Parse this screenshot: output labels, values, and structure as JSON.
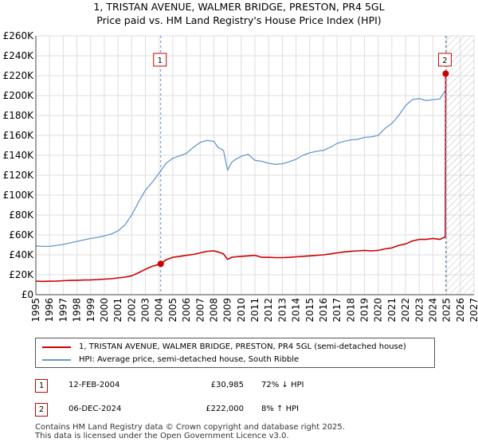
{
  "title_line1": "1, TRISTAN AVENUE, WALMER BRIDGE, PRESTON, PR4 5GL",
  "title_line2": "Price paid vs. HM Land Registry's House Price Index (HPI)",
  "chart_data": {
    "type": "line",
    "title": "1, TRISTAN AVENUE, WALMER BRIDGE, PRESTON, PR4 5GL",
    "subtitle": "Price paid vs. HM Land Registry's House Price Index (HPI)",
    "xlabel": "",
    "ylabel": "",
    "xlim": [
      1995,
      2027
    ],
    "ylim": [
      0,
      260000
    ],
    "x_ticks": [
      1995,
      1996,
      1997,
      1998,
      1999,
      2000,
      2001,
      2002,
      2003,
      2004,
      2005,
      2006,
      2007,
      2008,
      2009,
      2010,
      2011,
      2012,
      2013,
      2014,
      2015,
      2016,
      2017,
      2018,
      2019,
      2020,
      2021,
      2022,
      2023,
      2024,
      2025,
      2026,
      2027
    ],
    "y_ticks": [
      0,
      20000,
      40000,
      60000,
      80000,
      100000,
      120000,
      140000,
      160000,
      180000,
      200000,
      220000,
      240000,
      260000
    ],
    "y_tick_labels": [
      "£0",
      "£20K",
      "£40K",
      "£60K",
      "£80K",
      "£100K",
      "£120K",
      "£140K",
      "£160K",
      "£180K",
      "£200K",
      "£220K",
      "£240K",
      "£260K"
    ],
    "grid": true,
    "future_hatch_from": 2025.0,
    "series": [
      {
        "name": "1, TRISTAN AVENUE, WALMER BRIDGE, PRESTON, PR4 5GL (semi-detached house)",
        "color": "#cc0000",
        "x": [
          1995.0,
          1995.5,
          1996.0,
          1996.5,
          1997.0,
          1997.5,
          1998.0,
          1998.5,
          1999.0,
          1999.5,
          2000.0,
          2000.5,
          2001.0,
          2001.5,
          2002.0,
          2002.5,
          2003.0,
          2003.5,
          2004.12,
          2004.5,
          2005.0,
          2005.5,
          2006.0,
          2006.5,
          2007.0,
          2007.5,
          2008.0,
          2008.3,
          2008.7,
          2009.0,
          2009.3,
          2009.6,
          2010.0,
          2010.5,
          2011.0,
          2011.5,
          2012.0,
          2012.5,
          2013.0,
          2013.5,
          2014.0,
          2014.5,
          2015.0,
          2015.5,
          2016.0,
          2016.5,
          2017.0,
          2017.5,
          2018.0,
          2018.5,
          2019.0,
          2019.5,
          2020.0,
          2020.5,
          2021.0,
          2021.5,
          2022.0,
          2022.5,
          2023.0,
          2023.5,
          2024.0,
          2024.5,
          2024.9,
          2024.93,
          2025.0
        ],
        "values": [
          13600,
          13400,
          13500,
          13700,
          14000,
          14300,
          14500,
          14700,
          14900,
          15200,
          15600,
          16000,
          16800,
          17600,
          19000,
          22000,
          25500,
          28500,
          30985,
          35000,
          37500,
          38500,
          39500,
          40500,
          42000,
          43500,
          44000,
          43000,
          41000,
          35500,
          37500,
          38000,
          38500,
          39000,
          39500,
          37500,
          37500,
          37200,
          37200,
          37500,
          38000,
          38500,
          39000,
          39500,
          40000,
          41000,
          42000,
          43000,
          43500,
          44000,
          44500,
          44000,
          44500,
          46000,
          47000,
          49500,
          51000,
          54000,
          55500,
          55500,
          56500,
          55500,
          58000,
          222000,
          222500
        ]
      },
      {
        "name": "HPI: Average price, semi-detached house, South Ribble",
        "color": "#6699cc",
        "x": [
          1995.0,
          1995.5,
          1996.0,
          1996.5,
          1997.0,
          1997.5,
          1998.0,
          1998.5,
          1999.0,
          1999.5,
          2000.0,
          2000.5,
          2001.0,
          2001.5,
          2002.0,
          2002.5,
          2003.0,
          2003.5,
          2004.0,
          2004.5,
          2005.0,
          2005.5,
          2006.0,
          2006.5,
          2007.0,
          2007.5,
          2008.0,
          2008.3,
          2008.7,
          2009.0,
          2009.3,
          2009.6,
          2010.0,
          2010.5,
          2011.0,
          2011.5,
          2012.0,
          2012.5,
          2013.0,
          2013.5,
          2014.0,
          2014.5,
          2015.0,
          2015.5,
          2016.0,
          2016.5,
          2017.0,
          2017.5,
          2018.0,
          2018.5,
          2019.0,
          2019.5,
          2020.0,
          2020.5,
          2021.0,
          2021.5,
          2022.0,
          2022.5,
          2023.0,
          2023.5,
          2024.0,
          2024.5,
          2024.9
        ],
        "values": [
          49000,
          48500,
          48500,
          49500,
          50500,
          52000,
          53500,
          55000,
          56500,
          57500,
          59000,
          61000,
          64000,
          70000,
          80000,
          93000,
          105000,
          113000,
          122000,
          132000,
          137000,
          139500,
          142000,
          148000,
          153000,
          155000,
          154000,
          148000,
          145000,
          125000,
          133000,
          136000,
          139000,
          141000,
          135000,
          134000,
          132000,
          131000,
          131500,
          133500,
          136000,
          140000,
          142500,
          144000,
          145000,
          148000,
          152000,
          154000,
          155500,
          156000,
          158000,
          158500,
          160000,
          167000,
          172000,
          180000,
          190000,
          196000,
          197000,
          195000,
          196000,
          196500,
          205000
        ]
      }
    ],
    "annotations": [
      {
        "label": "1",
        "x": 2004.12,
        "y": 30985
      },
      {
        "label": "2",
        "x": 2024.93,
        "y": 222000
      }
    ]
  },
  "legend": {
    "series1_label": "1, TRISTAN AVENUE, WALMER BRIDGE, PRESTON, PR4 5GL (semi-detached house)",
    "series2_label": "HPI: Average price, semi-detached house, South Ribble"
  },
  "transactions": [
    {
      "num": "1",
      "date": "12-FEB-2004",
      "price": "£30,985",
      "hpi": "72% ↓ HPI"
    },
    {
      "num": "2",
      "date": "06-DEC-2024",
      "price": "£222,000",
      "hpi": "8% ↑ HPI"
    }
  ],
  "footer": {
    "line1": "Contains HM Land Registry data © Crown copyright and database right 2025.",
    "line2": "This data is licensed under the Open Government Licence v3.0."
  },
  "colors": {
    "property_line": "#cc0000",
    "hpi_line": "#6699cc",
    "grid": "#dddddd"
  }
}
